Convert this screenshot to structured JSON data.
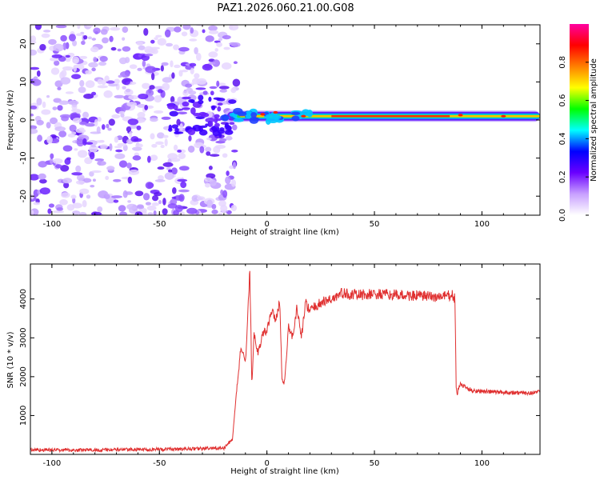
{
  "title": "PAZ1.2026.060.21.00.G08",
  "chart_data": [
    {
      "type": "heatmap",
      "xlabel": "Height of straight line (km)",
      "ylabel": "Frequency (Hz)",
      "xlim": [
        -110,
        127
      ],
      "ylim": [
        -25,
        25
      ],
      "xticks": [
        -100,
        -50,
        0,
        50,
        100
      ],
      "yticks": [
        -20,
        -10,
        0,
        10,
        20
      ],
      "colorbar": {
        "label": "Normalized spectral amplitude",
        "range": [
          0,
          1
        ],
        "ticks": [
          0.0,
          0.2,
          0.4,
          0.6,
          0.8
        ],
        "colors": [
          "#ffffff",
          "#c8a0ff",
          "#6a00ff",
          "#0000ff",
          "#00ffff",
          "#00ff00",
          "#ffff00",
          "#ff8000",
          "#ff0000",
          "#ff00a0"
        ]
      },
      "features": {
        "noise_region_x": [
          -110,
          -20
        ],
        "noise_color": "#7d3cff",
        "signal_band_frequency": 1,
        "signal_band_x": [
          -20,
          127
        ]
      }
    },
    {
      "type": "line",
      "xlabel": "Height of straight line (km)",
      "ylabel": "SNR (10 * v/v)",
      "xlim": [
        -110,
        127
      ],
      "ylim": [
        0,
        4900
      ],
      "xticks": [
        -100,
        -50,
        0,
        50,
        100
      ],
      "yticks": [
        1000,
        2000,
        3000,
        4000
      ],
      "color": "#e03030",
      "x": [
        -110,
        -90,
        -70,
        -50,
        -30,
        -20,
        -16,
        -14,
        -12,
        -10,
        -9,
        -8,
        -7,
        -6,
        -4,
        -2,
        0,
        2,
        4,
        6,
        7,
        8,
        9,
        10,
        12,
        14,
        16,
        18,
        20,
        25,
        30,
        35,
        40,
        50,
        60,
        70,
        80,
        86,
        87.5,
        88,
        88.5,
        89,
        90,
        95,
        100,
        110,
        120,
        127
      ],
      "y": [
        120,
        110,
        120,
        130,
        150,
        160,
        400,
        1700,
        2800,
        2300,
        3400,
        4800,
        1800,
        3100,
        2600,
        3100,
        3200,
        3700,
        3500,
        3900,
        2000,
        1800,
        2400,
        3300,
        3000,
        3800,
        3000,
        3900,
        3700,
        3900,
        4000,
        4150,
        4100,
        4120,
        4100,
        4080,
        4050,
        4100,
        4000,
        1700,
        1500,
        1700,
        1800,
        1650,
        1620,
        1600,
        1580,
        1600
      ]
    }
  ]
}
